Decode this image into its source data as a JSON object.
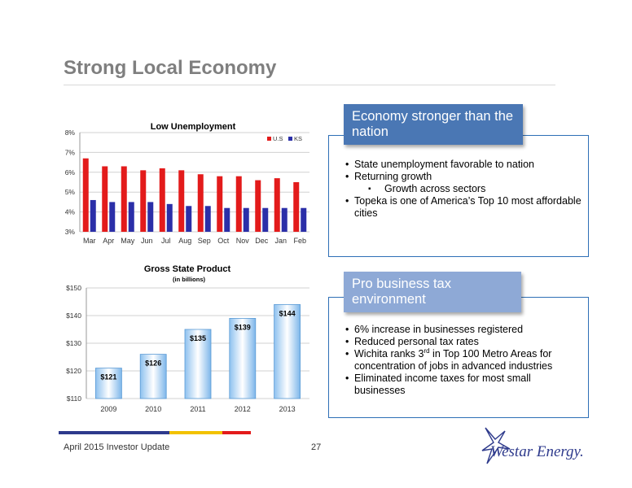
{
  "slide": {
    "title": "Strong Local Economy"
  },
  "unemployment_chart": {
    "title": "Low Unemployment",
    "legend": [
      "U.S",
      "KS"
    ]
  },
  "gsp_chart": {
    "title": "Gross State Product",
    "subtitle": "(in billions)"
  },
  "box1": {
    "header": "Economy stronger than the nation",
    "bullets": [
      "State unemployment favorable to nation",
      "Returning growth",
      "Growth across sectors",
      "Topeka is one of America’s Top 10 most affordable cities"
    ]
  },
  "box2": {
    "header": "Pro business tax environment",
    "bullets": [
      "6% increase in businesses registered",
      "Reduced personal tax rates",
      "Wichita ranks 3",
      "rd",
      " in Top 100 Metro Areas for concentration of jobs in advanced industries",
      "Eliminated income taxes for most small businesses"
    ]
  },
  "footer": {
    "text": "April 2015 Investor Update",
    "page": "27",
    "logo_text": "Westar Energy."
  },
  "colors": {
    "us": "#e31b1b",
    "ks": "#2b2fa8",
    "gsp_bar": "#5b9bd5",
    "navy": "#2e3a8c",
    "gold": "#f2c200",
    "red": "#e31b1b"
  },
  "chart_data": [
    {
      "type": "bar",
      "title": "Low Unemployment",
      "categories": [
        "Mar",
        "Apr",
        "May",
        "Jun",
        "Jul",
        "Aug",
        "Sep",
        "Oct",
        "Nov",
        "Dec",
        "Jan",
        "Feb"
      ],
      "series": [
        {
          "name": "U.S",
          "values": [
            6.7,
            6.3,
            6.3,
            6.1,
            6.2,
            6.1,
            5.9,
            5.8,
            5.8,
            5.6,
            5.7,
            5.5
          ]
        },
        {
          "name": "KS",
          "values": [
            4.6,
            4.5,
            4.5,
            4.5,
            4.4,
            4.3,
            4.3,
            4.2,
            4.2,
            4.2,
            4.2,
            4.2
          ]
        }
      ],
      "yticks": [
        "3%",
        "4%",
        "5%",
        "6%",
        "7%",
        "8%"
      ],
      "ylim": [
        3,
        8
      ],
      "grid": true,
      "legend": "top-right"
    },
    {
      "type": "bar",
      "title": "Gross State Product",
      "subtitle": "(in billions)",
      "categories": [
        "2009",
        "2010",
        "2011",
        "2012",
        "2013"
      ],
      "values": [
        121,
        126,
        135,
        139,
        144
      ],
      "labels": [
        "$121",
        "$126",
        "$135",
        "$139",
        "$144"
      ],
      "yticks": [
        "$110",
        "$120",
        "$130",
        "$140",
        "$150"
      ],
      "ylim": [
        110,
        150
      ],
      "grid": true
    }
  ]
}
